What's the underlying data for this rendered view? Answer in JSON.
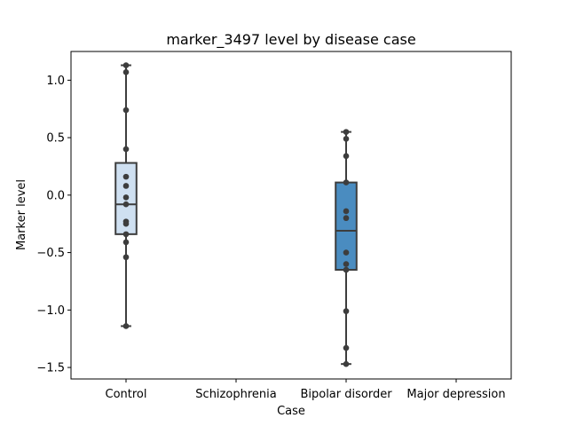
{
  "chart_data": {
    "type": "box",
    "title": "marker_3497 level by disease case",
    "xlabel": "Case",
    "ylabel": "Marker level",
    "categories": [
      "Control",
      "Schizophrenia",
      "Bipolar disorder",
      "Major depression"
    ],
    "ylim": [
      -1.6,
      1.25
    ],
    "yticks": [
      -1.5,
      -1.0,
      -0.5,
      0.0,
      0.5,
      1.0
    ],
    "grid": false,
    "legend": "none",
    "boxes": [
      {
        "category": "Control",
        "whisker_low": -1.14,
        "q1": -0.34,
        "median": -0.08,
        "q3": 0.28,
        "whisker_high": 1.13,
        "color": "#cfe0f1",
        "points": [
          1.13,
          1.07,
          0.74,
          0.4,
          0.16,
          0.08,
          -0.02,
          -0.08,
          -0.23,
          -0.25,
          -0.34,
          -0.41,
          -0.54,
          -1.14
        ]
      },
      {
        "category": "Bipolar disorder",
        "whisker_low": -1.47,
        "q1": -0.65,
        "median": -0.31,
        "q3": 0.11,
        "whisker_high": 0.55,
        "color": "#4a8cc0",
        "points": [
          0.55,
          0.49,
          0.34,
          0.11,
          -0.14,
          -0.2,
          -0.5,
          -0.6,
          -0.65,
          -1.01,
          -1.33,
          -1.47
        ]
      }
    ],
    "point_color": "#3d3d3d",
    "line_color": "#3d3d3d"
  }
}
